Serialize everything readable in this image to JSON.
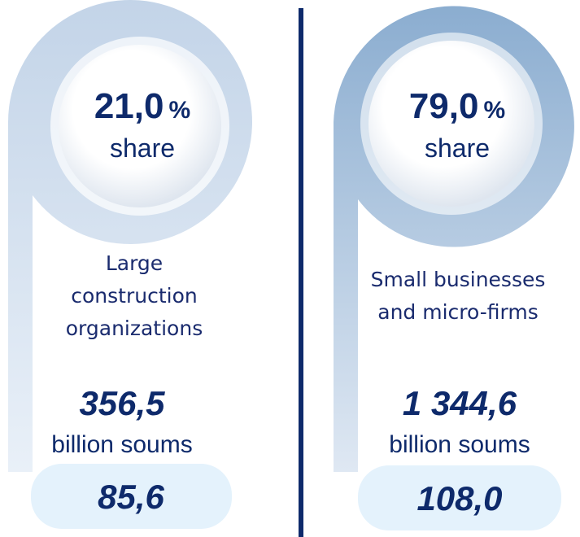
{
  "panels": [
    {
      "share": "21,0",
      "share_unit": "%",
      "share_label": "share",
      "description": [
        "Large",
        "construction",
        "organizations"
      ],
      "amount": "356,5",
      "amount_unit": "billion soums",
      "index": "85,6"
    },
    {
      "share": "79,0",
      "share_unit": "%",
      "share_label": "share",
      "description": [
        "Small businesses",
        "and micro-firms"
      ],
      "amount": "1 344,6",
      "amount_unit": "billion soums",
      "index": "108,0"
    }
  ]
}
